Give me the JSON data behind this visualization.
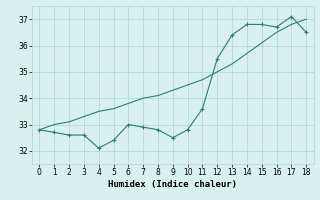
{
  "x": [
    0,
    1,
    2,
    3,
    4,
    5,
    6,
    7,
    8,
    9,
    10,
    11,
    12,
    13,
    14,
    15,
    16,
    17,
    18
  ],
  "y_jagged": [
    32.8,
    32.7,
    32.6,
    32.6,
    32.1,
    32.4,
    33.0,
    32.9,
    32.8,
    32.5,
    32.8,
    33.6,
    35.5,
    36.4,
    36.8,
    36.8,
    36.7,
    37.1,
    36.5
  ],
  "y_trend": [
    32.8,
    33.0,
    33.1,
    33.3,
    33.5,
    33.6,
    33.8,
    34.0,
    34.1,
    34.3,
    34.5,
    34.7,
    35.0,
    35.3,
    35.7,
    36.1,
    36.5,
    36.8,
    37.0
  ],
  "line_color": "#2e7d6e",
  "bg_color": "#d8f0ee",
  "grid_color": "#b8d8d4",
  "xlabel": "Humidex (Indice chaleur)",
  "ylim": [
    31.5,
    37.5
  ],
  "xlim": [
    -0.5,
    18.5
  ],
  "yticks": [
    32,
    33,
    34,
    35,
    36,
    37
  ],
  "xticks": [
    0,
    1,
    2,
    3,
    4,
    5,
    6,
    7,
    8,
    9,
    10,
    11,
    12,
    13,
    14,
    15,
    16,
    17,
    18
  ],
  "tick_fontsize": 5.5,
  "label_fontsize": 6.5
}
